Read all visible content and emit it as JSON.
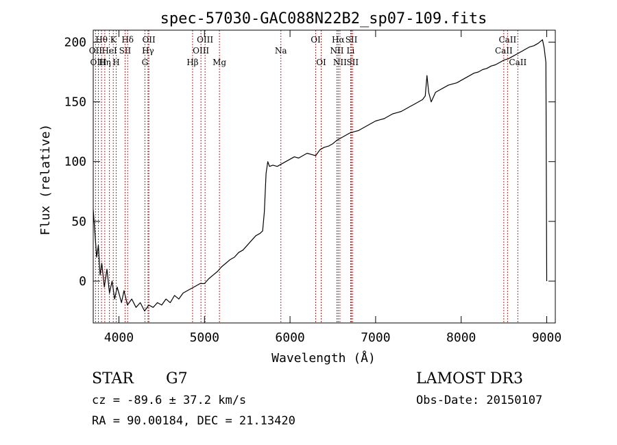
{
  "chart_data": {
    "type": "line",
    "title": "spec-57030-GAC088N22B2_sp07-109.fits",
    "xlabel": "Wavelength (Å)",
    "ylabel": "Flux (relative)",
    "xlim": [
      3700,
      9100
    ],
    "ylim": [
      -35,
      210
    ],
    "xticks": [
      4000,
      5000,
      6000,
      7000,
      8000,
      9000
    ],
    "xtick_labels": [
      "4000",
      "5000",
      "6000",
      "7000",
      "8000",
      "9000"
    ],
    "yticks": [
      0,
      50,
      100,
      150,
      200
    ],
    "ytick_labels": [
      "0",
      "50",
      "100",
      "150",
      "200"
    ],
    "series": [
      {
        "name": "flux",
        "x": [
          3700,
          3720,
          3740,
          3760,
          3780,
          3800,
          3830,
          3860,
          3890,
          3920,
          3950,
          3980,
          4000,
          4030,
          4060,
          4100,
          4150,
          4200,
          4250,
          4300,
          4350,
          4400,
          4450,
          4500,
          4550,
          4600,
          4650,
          4700,
          4750,
          4800,
          4850,
          4900,
          4950,
          5000,
          5050,
          5100,
          5150,
          5200,
          5250,
          5300,
          5350,
          5400,
          5450,
          5500,
          5550,
          5600,
          5650,
          5680,
          5700,
          5720,
          5740,
          5760,
          5800,
          5850,
          5900,
          5950,
          6000,
          6050,
          6100,
          6150,
          6200,
          6250,
          6300,
          6350,
          6400,
          6450,
          6500,
          6550,
          6600,
          6650,
          6700,
          6750,
          6800,
          6850,
          6900,
          6950,
          7000,
          7050,
          7100,
          7150,
          7200,
          7250,
          7300,
          7350,
          7400,
          7450,
          7500,
          7550,
          7580,
          7600,
          7620,
          7650,
          7700,
          7750,
          7800,
          7850,
          7900,
          7950,
          8000,
          8050,
          8100,
          8150,
          8200,
          8250,
          8300,
          8350,
          8400,
          8450,
          8500,
          8550,
          8600,
          8650,
          8700,
          8750,
          8800,
          8850,
          8900,
          8950,
          8970,
          8990,
          9000
        ],
        "y": [
          60,
          40,
          20,
          30,
          5,
          15,
          -5,
          10,
          -10,
          0,
          -15,
          -5,
          -10,
          -18,
          -8,
          -20,
          -15,
          -22,
          -18,
          -25,
          -20,
          -22,
          -18,
          -20,
          -15,
          -18,
          -12,
          -15,
          -10,
          -8,
          -6,
          -4,
          -2,
          -2,
          2,
          5,
          8,
          12,
          15,
          18,
          20,
          24,
          26,
          30,
          34,
          38,
          40,
          42,
          58,
          90,
          100,
          96,
          97,
          96,
          98,
          100,
          102,
          104,
          103,
          105,
          107,
          106,
          105,
          110,
          112,
          113,
          115,
          118,
          120,
          122,
          124,
          125,
          126,
          128,
          130,
          132,
          134,
          135,
          136,
          138,
          140,
          141,
          142,
          144,
          146,
          148,
          150,
          152,
          155,
          172,
          158,
          150,
          158,
          160,
          162,
          164,
          165,
          166,
          168,
          170,
          172,
          174,
          175,
          177,
          178,
          180,
          181,
          183,
          185,
          186,
          188,
          190,
          192,
          194,
          196,
          197,
          199,
          202,
          195,
          183,
          0
        ]
      }
    ],
    "line_markers": [
      {
        "label": "Hθ",
        "wavelength": 3797,
        "row": 1
      },
      {
        "label": "K",
        "wavelength": 3934,
        "row": 1
      },
      {
        "label": "Hδ",
        "wavelength": 4102,
        "row": 1
      },
      {
        "label": "OII",
        "wavelength": 4350,
        "row": 1
      },
      {
        "label": "OIII",
        "wavelength": 5007,
        "row": 1
      },
      {
        "label": "OI",
        "wavelength": 6300,
        "row": 1
      },
      {
        "label": "Hα",
        "wavelength": 6563,
        "row": 1
      },
      {
        "label": "SII",
        "wavelength": 6717,
        "row": 1
      },
      {
        "label": "CaII",
        "wavelength": 8542,
        "row": 1
      },
      {
        "label": "OII",
        "wavelength": 3727,
        "row": 2
      },
      {
        "label": "HeI",
        "wavelength": 3889,
        "row": 2
      },
      {
        "label": "SII",
        "wavelength": 4072,
        "row": 2
      },
      {
        "label": "Hγ",
        "wavelength": 4340,
        "row": 2
      },
      {
        "label": "OIII",
        "wavelength": 4959,
        "row": 2
      },
      {
        "label": "Na",
        "wavelength": 5893,
        "row": 2
      },
      {
        "label": "NII",
        "wavelength": 6548,
        "row": 2
      },
      {
        "label": "Li",
        "wavelength": 6708,
        "row": 2
      },
      {
        "label": "CaII",
        "wavelength": 8498,
        "row": 2
      },
      {
        "label": "OIII",
        "wavelength": 3760,
        "row": 3
      },
      {
        "label": "Hη",
        "wavelength": 3835,
        "row": 3
      },
      {
        "label": "H",
        "wavelength": 3968,
        "row": 3
      },
      {
        "label": "G",
        "wavelength": 4304,
        "row": 3
      },
      {
        "label": "Hβ",
        "wavelength": 4861,
        "row": 3
      },
      {
        "label": "Mg",
        "wavelength": 5175,
        "row": 3
      },
      {
        "label": "OI",
        "wavelength": 6364,
        "row": 3
      },
      {
        "label": "NII",
        "wavelength": 6583,
        "row": 3
      },
      {
        "label": "SII",
        "wavelength": 6731,
        "row": 3
      },
      {
        "label": "CaII",
        "wavelength": 8662,
        "row": 3
      }
    ]
  },
  "info": {
    "object_class": "STAR",
    "subclass": "G7",
    "survey": "LAMOST DR3",
    "redshift": "cz = -89.6 ± 37.2 km/s",
    "obs_date": "Obs-Date: 20150107",
    "coords": "RA =  90.00184, DEC =  21.13420"
  },
  "colors": {
    "spectrum": "#000000",
    "marker_line": "#b22222",
    "axes": "#000000"
  }
}
